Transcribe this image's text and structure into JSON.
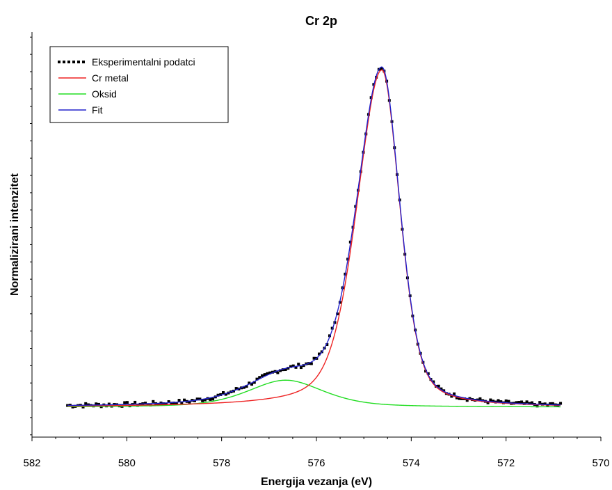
{
  "chart_data": {
    "type": "line",
    "title": "Cr 2p",
    "xlabel": "Energija vezanja (eV)",
    "ylabel": "Normalizirani intenzitet",
    "xlim": [
      582,
      570
    ],
    "ylim": [
      -0.08,
      1.1
    ],
    "x_ticks": [
      "582",
      "580",
      "578",
      "576",
      "574",
      "572",
      "570"
    ],
    "y_ticks_labeled": false,
    "grid": false,
    "legend": "top-left",
    "colors": {
      "experimental": "#000000",
      "cr_metal": "#ee2222",
      "oxide": "#22dd22",
      "fit": "#2222cc"
    },
    "series": [
      {
        "name": "Eksperimentalni podatci",
        "style": "dots",
        "x_range": [
          581.25,
          570.85
        ],
        "points": [
          [
            581.2,
            0.0
          ],
          [
            580.8,
            0.0
          ],
          [
            580.4,
            0.01
          ],
          [
            580.0,
            0.01
          ],
          [
            579.6,
            0.015
          ],
          [
            579.2,
            0.025
          ],
          [
            578.8,
            0.03
          ],
          [
            578.4,
            0.04
          ],
          [
            578.0,
            0.05
          ],
          [
            577.6,
            0.06
          ],
          [
            577.2,
            0.075
          ],
          [
            576.8,
            0.09
          ],
          [
            576.4,
            0.12
          ],
          [
            576.0,
            0.15
          ],
          [
            575.8,
            0.17
          ],
          [
            575.6,
            0.21
          ],
          [
            575.4,
            0.27
          ],
          [
            575.2,
            0.35
          ],
          [
            575.0,
            0.48
          ],
          [
            574.8,
            0.7
          ],
          [
            574.7,
            0.88
          ],
          [
            574.6,
            0.97
          ],
          [
            574.5,
            0.98
          ],
          [
            574.4,
            0.9
          ],
          [
            574.2,
            0.78
          ],
          [
            574.0,
            0.62
          ],
          [
            573.8,
            0.45
          ],
          [
            573.6,
            0.3
          ],
          [
            573.4,
            0.17
          ],
          [
            573.2,
            0.08
          ],
          [
            573.0,
            0.035
          ],
          [
            572.8,
            0.02
          ],
          [
            572.6,
            0.01
          ],
          [
            572.4,
            0.005
          ],
          [
            572.0,
            0.0
          ],
          [
            571.5,
            0.0
          ],
          [
            570.85,
            0.0
          ]
        ]
      },
      {
        "name": "Cr metal",
        "style": "line",
        "peak_x": 574.62,
        "peak_y": 0.975,
        "fwhm": 1.0,
        "x_range": [
          581.25,
          570.85
        ]
      },
      {
        "name": "Oksid",
        "style": "line",
        "peak_x": 576.65,
        "peak_y": 0.078,
        "fwhm": 1.9,
        "x_range": [
          581.25,
          570.85
        ]
      },
      {
        "name": "Fit",
        "style": "line",
        "components": [
          "Cr metal",
          "Oksid"
        ],
        "x_range": [
          581.25,
          570.85
        ]
      }
    ]
  }
}
